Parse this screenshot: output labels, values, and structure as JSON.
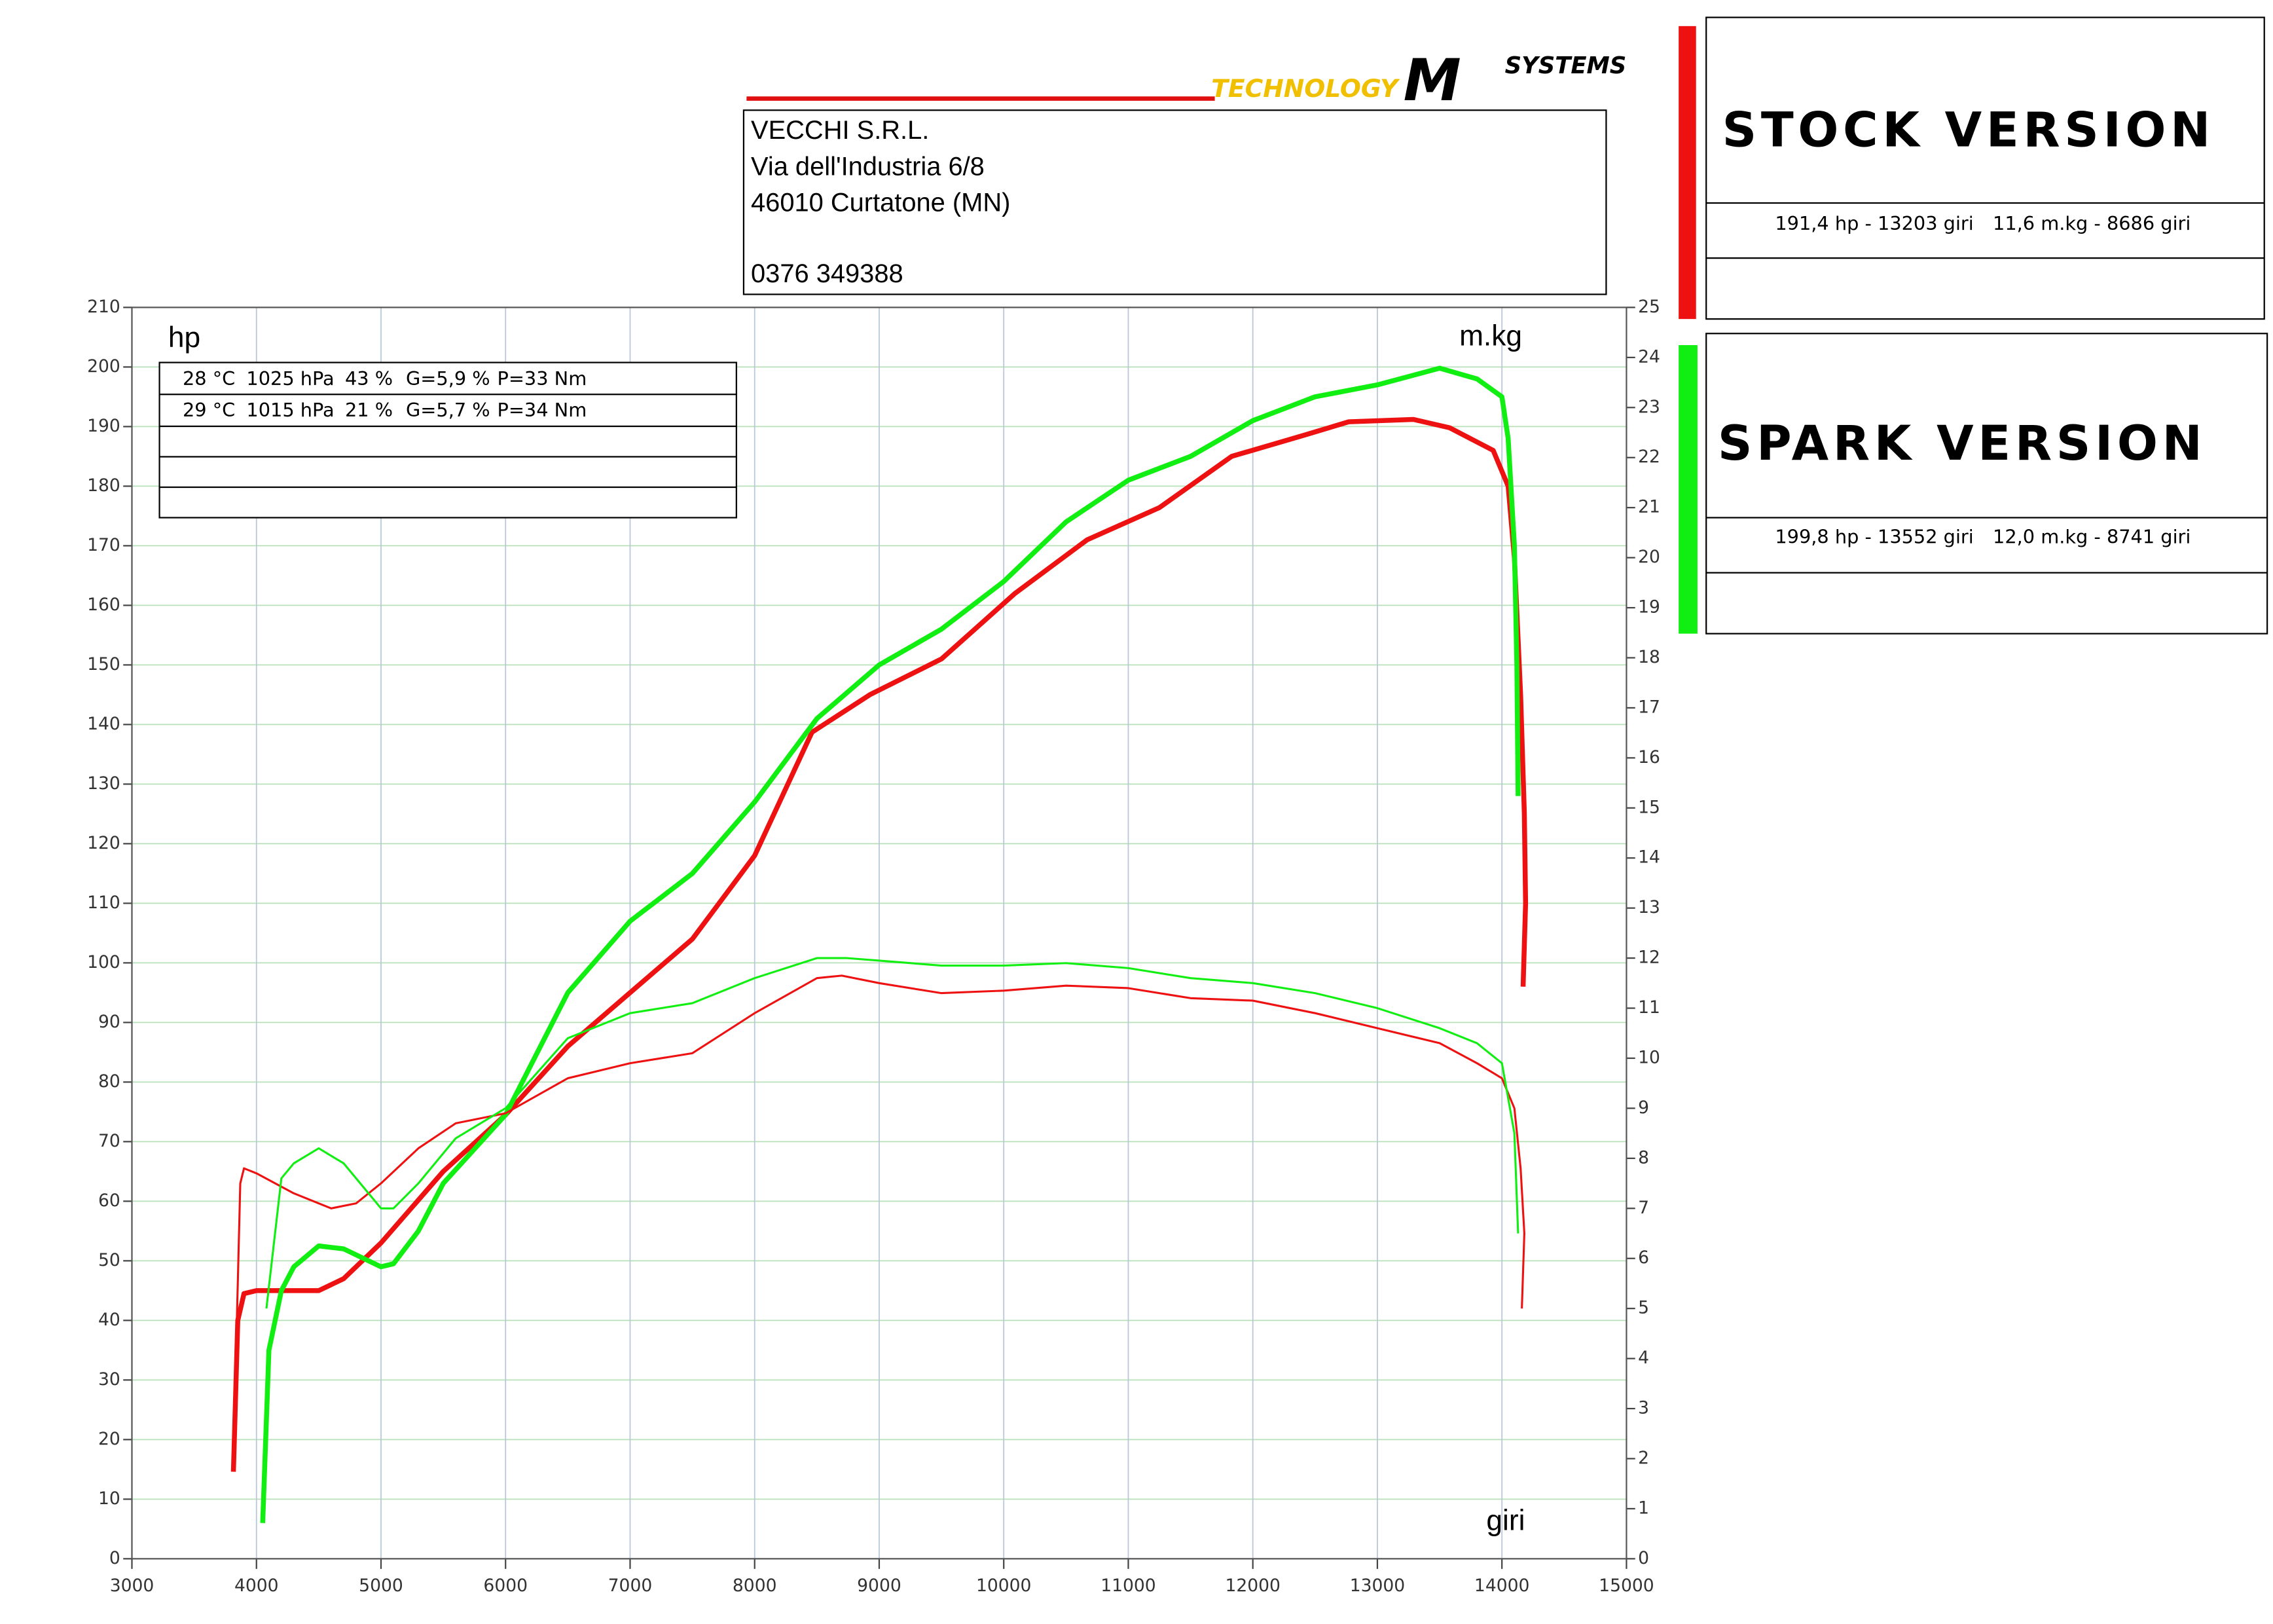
{
  "header": {
    "logo": [
      "TECHNOLOGY",
      "SYSTEMS"
    ],
    "address": [
      "VECCHI S.R.L.",
      "Via dell'Industria 6/8",
      "46010 Curtatone (MN)",
      "0376 349388"
    ]
  },
  "legend": [
    {
      "title": "STOCK VERSION",
      "power": "191,4 hp - 13203 giri",
      "torque": "11,6 m.kg - 8686 giri",
      "color": "#ee1111"
    },
    {
      "title": "SPARK VERSION",
      "power": "199,8 hp - 13552 giri",
      "torque": "12,0 m.kg - 8741 giri",
      "color": "#11ee11"
    }
  ],
  "chart_data": {
    "type": "line",
    "y_label": "hp",
    "y2_label": "m.kg",
    "x_label": "giri",
    "conditions": [
      [
        "28 °C",
        "1025 hPa",
        "43 %",
        "G=5,9 %",
        "P=33 Nm"
      ],
      [
        "29 °C",
        "1015 hPa",
        "21 %",
        "G=5,7 %",
        "P=34 Nm"
      ]
    ],
    "xlim": [
      3000,
      15000
    ],
    "xticks": [
      3000,
      4000,
      5000,
      6000,
      7000,
      8000,
      9000,
      10000,
      11000,
      12000,
      13000,
      14000,
      15000
    ],
    "ylim": [
      0,
      210
    ],
    "yticks": [
      0,
      10,
      20,
      30,
      40,
      50,
      60,
      70,
      80,
      90,
      100,
      110,
      120,
      130,
      140,
      150,
      160,
      170,
      180,
      190,
      200,
      210
    ],
    "y2lim": [
      0,
      25
    ],
    "y2ticks": [
      0,
      1,
      2,
      3,
      4,
      5,
      6,
      7,
      8,
      9,
      10,
      11,
      12,
      13,
      14,
      15,
      16,
      17,
      18,
      19,
      20,
      21,
      22,
      23,
      24,
      25
    ],
    "grid": true,
    "series": [
      {
        "color": "#ee1111",
        "axis": "y",
        "x": [
          3815,
          3850,
          3900,
          4000,
          4500,
          4700,
          5000,
          5500,
          6000,
          6500,
          7000,
          7500,
          8000,
          8460,
          8925,
          9500,
          10090,
          10670,
          11250,
          11830,
          12420,
          12770,
          13290,
          13580,
          13930,
          14050,
          14100,
          14150,
          14180,
          14190,
          14170
        ],
        "values": [
          14.6,
          40,
          44.5,
          45,
          45,
          47,
          53,
          65,
          74.5,
          86,
          95,
          104,
          118,
          138.7,
          145,
          151,
          162,
          171,
          176.4,
          185,
          188.6,
          190.8,
          191.2,
          189.8,
          186,
          180,
          168,
          145,
          125,
          110,
          96
        ]
      },
      {
        "color": "#11ee11",
        "axis": "y",
        "x": [
          4050,
          4100,
          4200,
          4300,
          4500,
          4700,
          5000,
          5100,
          5300,
          5500,
          6000,
          6500,
          7000,
          7500,
          8000,
          8500,
          9000,
          9500,
          10000,
          10500,
          11000,
          11500,
          12000,
          12500,
          13000,
          13500,
          13800,
          14000,
          14050,
          14100,
          14120,
          14130
        ],
        "values": [
          6,
          35,
          45,
          49,
          52.5,
          52,
          49,
          49.5,
          55,
          63,
          74.5,
          95,
          107,
          115,
          127,
          141,
          150,
          156,
          164,
          174,
          181,
          185,
          191,
          195,
          197,
          199.8,
          198,
          195,
          188,
          170,
          150,
          128
        ]
      },
      {
        "color": "#ee1111",
        "axis": "y2",
        "x": [
          3820,
          3870,
          3900,
          4000,
          4300,
          4600,
          4800,
          5000,
          5300,
          5600,
          6000,
          6500,
          7000,
          7500,
          8000,
          8500,
          8700,
          9000,
          9500,
          10000,
          10500,
          11000,
          11500,
          12000,
          12500,
          13000,
          13500,
          13800,
          14000,
          14100,
          14150,
          14180,
          14160
        ],
        "values": [
          2.5,
          7.5,
          7.8,
          7.7,
          7.3,
          7.0,
          7.1,
          7.5,
          8.2,
          8.7,
          8.9,
          9.6,
          9.9,
          10.1,
          10.9,
          11.6,
          11.65,
          11.5,
          11.3,
          11.35,
          11.45,
          11.4,
          11.2,
          11.15,
          10.9,
          10.6,
          10.3,
          9.9,
          9.6,
          9.0,
          7.8,
          6.5,
          5.0
        ]
      },
      {
        "color": "#11ee11",
        "axis": "y2",
        "x": [
          4080,
          4200,
          4300,
          4500,
          4700,
          5000,
          5100,
          5300,
          5600,
          6000,
          6500,
          7000,
          7500,
          8000,
          8500,
          8741,
          9000,
          9500,
          10000,
          10500,
          11000,
          11500,
          12000,
          12500,
          13000,
          13500,
          13800,
          14000,
          14100,
          14130
        ],
        "values": [
          5.0,
          7.6,
          7.9,
          8.2,
          7.9,
          7.0,
          7.0,
          7.5,
          8.4,
          9.0,
          10.4,
          10.9,
          11.1,
          11.6,
          12.0,
          12.0,
          11.95,
          11.85,
          11.85,
          11.9,
          11.8,
          11.6,
          11.5,
          11.3,
          11.0,
          10.6,
          10.3,
          9.9,
          8.5,
          6.5
        ]
      }
    ]
  }
}
